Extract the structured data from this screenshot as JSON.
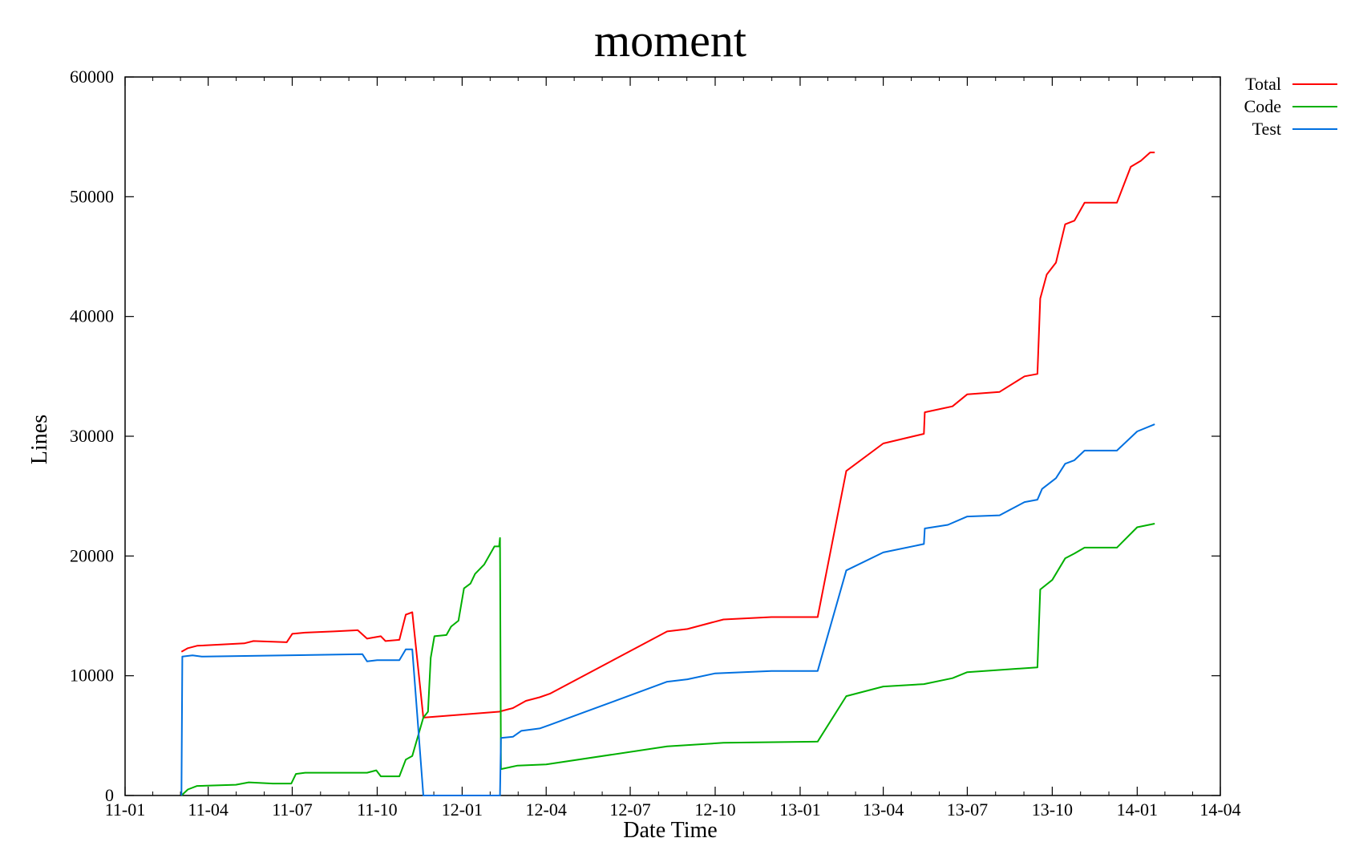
{
  "chart_data": {
    "type": "line",
    "title": "moment",
    "xlabel": "Date Time",
    "ylabel": "Lines",
    "x_axis": {
      "type": "date",
      "range": [
        "2011-01-01",
        "2014-04-01"
      ],
      "ticks": [
        {
          "date": "2011-01-01",
          "label": "11-01"
        },
        {
          "date": "2011-04-01",
          "label": "11-04"
        },
        {
          "date": "2011-07-01",
          "label": "11-07"
        },
        {
          "date": "2011-10-01",
          "label": "11-10"
        },
        {
          "date": "2012-01-01",
          "label": "12-01"
        },
        {
          "date": "2012-04-01",
          "label": "12-04"
        },
        {
          "date": "2012-07-01",
          "label": "12-07"
        },
        {
          "date": "2012-10-01",
          "label": "12-10"
        },
        {
          "date": "2013-01-01",
          "label": "13-01"
        },
        {
          "date": "2013-04-01",
          "label": "13-04"
        },
        {
          "date": "2013-07-01",
          "label": "13-07"
        },
        {
          "date": "2013-10-01",
          "label": "13-10"
        },
        {
          "date": "2014-01-01",
          "label": "14-01"
        },
        {
          "date": "2014-04-01",
          "label": "14-04"
        }
      ]
    },
    "y_axis": {
      "range": [
        0,
        60000
      ],
      "ticks": [
        {
          "value": 0,
          "label": "0"
        },
        {
          "value": 10000,
          "label": "10000"
        },
        {
          "value": 20000,
          "label": "20000"
        },
        {
          "value": 30000,
          "label": "30000"
        },
        {
          "value": 40000,
          "label": "40000"
        },
        {
          "value": 50000,
          "label": "50000"
        },
        {
          "value": 60000,
          "label": "60000"
        }
      ]
    },
    "grid": false,
    "legend_position": "outside-top-right",
    "series": [
      {
        "name": "Total",
        "color": "#ff0000",
        "points": [
          [
            "2011-03-03",
            12000
          ],
          [
            "2011-03-10",
            12300
          ],
          [
            "2011-03-20",
            12500
          ],
          [
            "2011-04-15",
            12600
          ],
          [
            "2011-05-10",
            12700
          ],
          [
            "2011-05-20",
            12900
          ],
          [
            "2011-06-25",
            12800
          ],
          [
            "2011-07-01",
            13500
          ],
          [
            "2011-07-15",
            13600
          ],
          [
            "2011-08-15",
            13700
          ],
          [
            "2011-09-10",
            13800
          ],
          [
            "2011-09-20",
            13100
          ],
          [
            "2011-10-05",
            13300
          ],
          [
            "2011-10-10",
            12900
          ],
          [
            "2011-10-25",
            13000
          ],
          [
            "2011-11-01",
            15100
          ],
          [
            "2011-11-08",
            15300
          ],
          [
            "2011-11-20",
            6500
          ],
          [
            "2012-02-10",
            7000
          ],
          [
            "2012-02-25",
            7300
          ],
          [
            "2012-03-10",
            7900
          ],
          [
            "2012-03-25",
            8200
          ],
          [
            "2012-04-05",
            8500
          ],
          [
            "2012-08-10",
            13700
          ],
          [
            "2012-09-01",
            13900
          ],
          [
            "2012-09-25",
            14400
          ],
          [
            "2012-10-10",
            14700
          ],
          [
            "2012-12-01",
            14900
          ],
          [
            "2013-01-20",
            14900
          ],
          [
            "2013-02-20",
            27100
          ],
          [
            "2013-04-01",
            29400
          ],
          [
            "2013-05-15",
            30200
          ],
          [
            "2013-05-16",
            32000
          ],
          [
            "2013-06-15",
            32500
          ],
          [
            "2013-07-01",
            33500
          ],
          [
            "2013-08-05",
            33700
          ],
          [
            "2013-09-01",
            35000
          ],
          [
            "2013-09-15",
            35200
          ],
          [
            "2013-09-18",
            41500
          ],
          [
            "2013-09-25",
            43500
          ],
          [
            "2013-10-05",
            44500
          ],
          [
            "2013-10-15",
            47700
          ],
          [
            "2013-10-25",
            48000
          ],
          [
            "2013-11-05",
            49500
          ],
          [
            "2013-12-10",
            49500
          ],
          [
            "2013-12-25",
            52500
          ],
          [
            "2014-01-05",
            53000
          ],
          [
            "2014-01-15",
            53700
          ],
          [
            "2014-01-20",
            53700
          ]
        ]
      },
      {
        "name": "Code",
        "color": "#00b000",
        "points": [
          [
            "2011-03-03",
            0
          ],
          [
            "2011-03-10",
            500
          ],
          [
            "2011-03-20",
            800
          ],
          [
            "2011-05-01",
            900
          ],
          [
            "2011-05-15",
            1100
          ],
          [
            "2011-06-10",
            1000
          ],
          [
            "2011-06-30",
            1000
          ],
          [
            "2011-07-05",
            1800
          ],
          [
            "2011-07-15",
            1900
          ],
          [
            "2011-09-20",
            1900
          ],
          [
            "2011-09-30",
            2100
          ],
          [
            "2011-10-05",
            1600
          ],
          [
            "2011-10-25",
            1600
          ],
          [
            "2011-11-01",
            3000
          ],
          [
            "2011-11-08",
            3300
          ],
          [
            "2011-11-20",
            6500
          ],
          [
            "2011-11-25",
            7000
          ],
          [
            "2011-11-28",
            11500
          ],
          [
            "2011-12-02",
            13300
          ],
          [
            "2011-12-15",
            13400
          ],
          [
            "2011-12-20",
            14100
          ],
          [
            "2011-12-28",
            14600
          ],
          [
            "2012-01-03",
            17300
          ],
          [
            "2012-01-10",
            17700
          ],
          [
            "2012-01-15",
            18500
          ],
          [
            "2012-01-25",
            19300
          ],
          [
            "2012-02-05",
            20800
          ],
          [
            "2012-02-10",
            20800
          ],
          [
            "2012-02-11",
            21500
          ],
          [
            "2012-02-12",
            2200
          ],
          [
            "2012-03-01",
            2500
          ],
          [
            "2012-04-01",
            2600
          ],
          [
            "2012-08-10",
            4100
          ],
          [
            "2012-10-10",
            4400
          ],
          [
            "2013-01-20",
            4500
          ],
          [
            "2013-02-20",
            8300
          ],
          [
            "2013-04-01",
            9100
          ],
          [
            "2013-05-15",
            9300
          ],
          [
            "2013-06-15",
            9800
          ],
          [
            "2013-07-01",
            10300
          ],
          [
            "2013-09-15",
            10700
          ],
          [
            "2013-09-18",
            17200
          ],
          [
            "2013-10-01",
            18000
          ],
          [
            "2013-10-15",
            19800
          ],
          [
            "2013-10-25",
            20200
          ],
          [
            "2013-11-05",
            20700
          ],
          [
            "2013-12-10",
            20700
          ],
          [
            "2014-01-01",
            22400
          ],
          [
            "2014-01-20",
            22700
          ]
        ]
      },
      {
        "name": "Test",
        "color": "#0070e0",
        "points": [
          [
            "2011-03-03",
            0
          ],
          [
            "2011-03-04",
            11600
          ],
          [
            "2011-03-15",
            11700
          ],
          [
            "2011-03-25",
            11600
          ],
          [
            "2011-09-15",
            11800
          ],
          [
            "2011-09-20",
            11200
          ],
          [
            "2011-10-01",
            11300
          ],
          [
            "2011-10-25",
            11300
          ],
          [
            "2011-11-01",
            12200
          ],
          [
            "2011-11-08",
            12200
          ],
          [
            "2011-11-20",
            0
          ],
          [
            "2012-02-11",
            0
          ],
          [
            "2012-02-12",
            4800
          ],
          [
            "2012-02-25",
            4900
          ],
          [
            "2012-03-05",
            5400
          ],
          [
            "2012-03-25",
            5600
          ],
          [
            "2012-04-05",
            5900
          ],
          [
            "2012-08-10",
            9500
          ],
          [
            "2012-09-01",
            9700
          ],
          [
            "2012-10-01",
            10200
          ],
          [
            "2012-12-01",
            10400
          ],
          [
            "2013-01-20",
            10400
          ],
          [
            "2013-02-20",
            18800
          ],
          [
            "2013-04-01",
            20300
          ],
          [
            "2013-05-15",
            21000
          ],
          [
            "2013-05-16",
            22300
          ],
          [
            "2013-06-10",
            22600
          ],
          [
            "2013-07-01",
            23300
          ],
          [
            "2013-08-05",
            23400
          ],
          [
            "2013-09-01",
            24500
          ],
          [
            "2013-09-15",
            24700
          ],
          [
            "2013-09-20",
            25600
          ],
          [
            "2013-10-05",
            26500
          ],
          [
            "2013-10-15",
            27700
          ],
          [
            "2013-10-25",
            28000
          ],
          [
            "2013-11-05",
            28800
          ],
          [
            "2013-12-10",
            28800
          ],
          [
            "2014-01-01",
            30400
          ],
          [
            "2014-01-20",
            31000
          ]
        ]
      }
    ]
  }
}
